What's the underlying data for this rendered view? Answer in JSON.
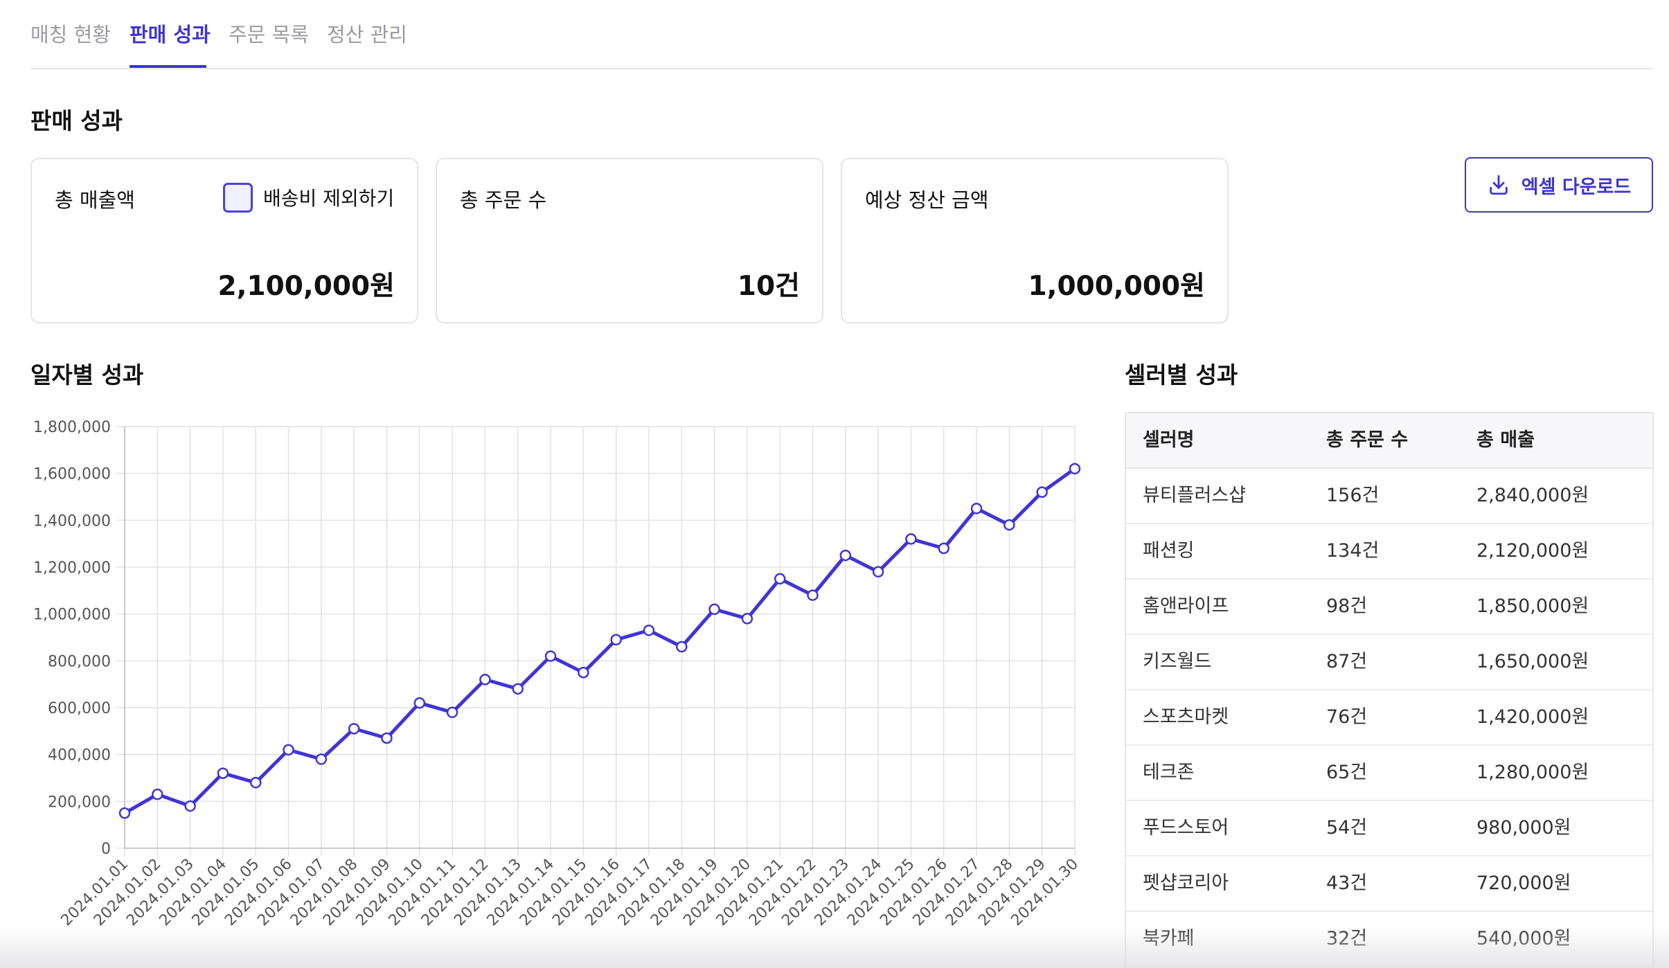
{
  "tabs": [
    {
      "label": "매칭 현황",
      "active": false
    },
    {
      "label": "판매 성과",
      "active": true
    },
    {
      "label": "주문 목록",
      "active": false
    },
    {
      "label": "정산 관리",
      "active": false
    }
  ],
  "page_title": "판매 성과",
  "cards": {
    "total_sales": {
      "label": "총 매출액",
      "value": "2,100,000원",
      "checkbox_label": "배송비 제외하기",
      "checkbox_checked": false
    },
    "total_orders": {
      "label": "총 주문 수",
      "value": "10건"
    },
    "expected_settlement": {
      "label": "예상 정산 금액",
      "value": "1,000,000원"
    }
  },
  "excel_button": {
    "label": "엑셀 다운로드",
    "icon": "download-icon"
  },
  "daily_section_title": "일자별 성과",
  "seller_section_title": "셀러별 성과",
  "colors": {
    "accent": "#3d34d2",
    "line": "#3f35d6",
    "grid": "#e2e2e6"
  },
  "chart_data": {
    "type": "line",
    "title": "",
    "xlabel": "",
    "ylabel": "",
    "ylim": [
      0,
      1800000
    ],
    "yticks": [
      0,
      200000,
      400000,
      600000,
      800000,
      1000000,
      1200000,
      1400000,
      1600000,
      1800000
    ],
    "ytick_labels": [
      "0",
      "200,000",
      "400,000",
      "600,000",
      "800,000",
      "1,000,000",
      "1,200,000",
      "1,400,000",
      "1,600,000",
      "1,800,000"
    ],
    "grid": true,
    "x": [
      "2024.01.01",
      "2024.01.02",
      "2024.01.03",
      "2024.01.04",
      "2024.01.05",
      "2024.01.06",
      "2024.01.07",
      "2024.01.08",
      "2024.01.09",
      "2024.01.10",
      "2024.01.11",
      "2024.01.12",
      "2024.01.13",
      "2024.01.14",
      "2024.01.15",
      "2024.01.16",
      "2024.01.17",
      "2024.01.18",
      "2024.01.19",
      "2024.01.20",
      "2024.01.21",
      "2024.01.22",
      "2024.01.23",
      "2024.01.24",
      "2024.01.25",
      "2024.01.26",
      "2024.01.27",
      "2024.01.28",
      "2024.01.29",
      "2024.01.30"
    ],
    "series": [
      {
        "values": [
          150000,
          230000,
          180000,
          320000,
          280000,
          420000,
          380000,
          510000,
          470000,
          620000,
          580000,
          720000,
          680000,
          820000,
          750000,
          890000,
          930000,
          860000,
          1020000,
          980000,
          1150000,
          1080000,
          1250000,
          1180000,
          1320000,
          1280000,
          1450000,
          1380000,
          1520000,
          1620000
        ]
      }
    ]
  },
  "seller_table": {
    "headers": [
      "셀러명",
      "총 주문 수",
      "총 매출"
    ],
    "rows": [
      [
        "뷰티플러스샵",
        "156건",
        "2,840,000원"
      ],
      [
        "패션킹",
        "134건",
        "2,120,000원"
      ],
      [
        "홈앤라이프",
        "98건",
        "1,850,000원"
      ],
      [
        "키즈월드",
        "87건",
        "1,650,000원"
      ],
      [
        "스포츠마켓",
        "76건",
        "1,420,000원"
      ],
      [
        "테크존",
        "65건",
        "1,280,000원"
      ],
      [
        "푸드스토어",
        "54건",
        "980,000원"
      ],
      [
        "펫샵코리아",
        "43건",
        "720,000원"
      ],
      [
        "북카페",
        "32건",
        "540,000원"
      ]
    ]
  }
}
